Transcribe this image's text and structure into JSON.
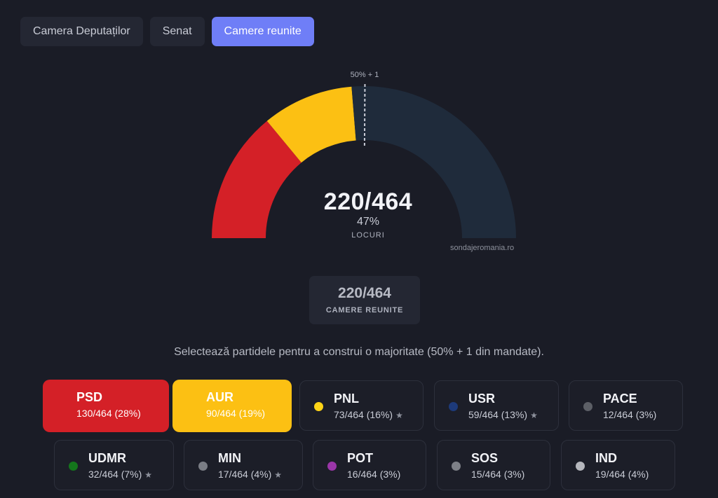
{
  "tabs": [
    {
      "label": "Camera Deputaților",
      "active": false
    },
    {
      "label": "Senat",
      "active": false
    },
    {
      "label": "Camere reunite",
      "active": true
    }
  ],
  "hemicycle": {
    "total_text": "220/464",
    "percent_text": "47%",
    "unit_label": "LOCURI",
    "majority_label": "50% + 1",
    "watermark": "sondajeromania.ro",
    "total_seats": 464,
    "majority_seats": 233,
    "selected_seats": 220,
    "empty_color": "#1f2b3b",
    "majority_line_color": "#c9ccd6"
  },
  "summary": {
    "value": "220/464",
    "label": "CAMERE REUNITE"
  },
  "instructions": "Selectează partidele pentru a construi o majoritate (50% + 1 din mandate).",
  "parties": [
    {
      "name": "PSD",
      "seats_text": "130/464 (28%)",
      "seats": 130,
      "color": "#d42027",
      "selected": true,
      "star": false
    },
    {
      "name": "AUR",
      "seats_text": "90/464 (19%)",
      "seats": 90,
      "color": "#fcc013",
      "selected": true,
      "star": false
    },
    {
      "name": "PNL",
      "seats_text": "73/464 (16%)",
      "seats": 73,
      "color": "#ffd417",
      "selected": false,
      "star": true
    },
    {
      "name": "USR",
      "seats_text": "59/464 (13%)",
      "seats": 59,
      "color": "#1d3a7a",
      "selected": false,
      "star": true
    },
    {
      "name": "PACE",
      "seats_text": "12/464 (3%)",
      "seats": 12,
      "color": "#5c5f66",
      "selected": false,
      "star": false
    },
    {
      "name": "UDMR",
      "seats_text": "32/464 (7%)",
      "seats": 32,
      "color": "#14761c",
      "selected": false,
      "star": true
    },
    {
      "name": "MIN",
      "seats_text": "17/464 (4%)",
      "seats": 17,
      "color": "#7a7d85",
      "selected": false,
      "star": true
    },
    {
      "name": "POT",
      "seats_text": "16/464 (3%)",
      "seats": 16,
      "color": "#9a36a8",
      "selected": false,
      "star": false
    },
    {
      "name": "SOS",
      "seats_text": "15/464 (3%)",
      "seats": 15,
      "color": "#7d8087",
      "selected": false,
      "star": false
    },
    {
      "name": "IND",
      "seats_text": "19/464 (4%)",
      "seats": 19,
      "color": "#b5b7bd",
      "selected": false,
      "star": false
    }
  ],
  "star_glyph": "★"
}
